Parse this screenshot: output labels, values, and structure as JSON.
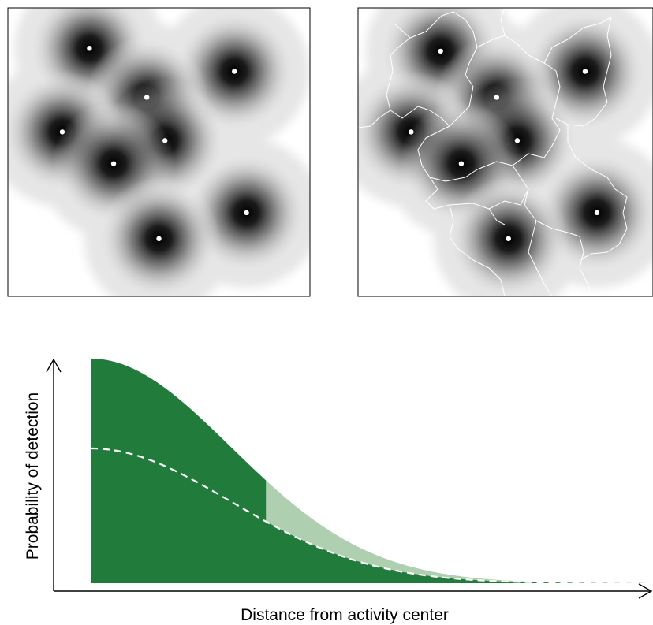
{
  "chart_data": [
    {
      "type": "heatmap",
      "panel": "left",
      "description_kind": "activity-center density surface",
      "colors": {
        "dark": "#000000",
        "light": "#f2f2f2",
        "point": "#ffffff",
        "border": "#000000"
      },
      "points": [
        {
          "x": 0.27,
          "y": 0.86
        },
        {
          "x": 0.75,
          "y": 0.78
        },
        {
          "x": 0.46,
          "y": 0.69
        },
        {
          "x": 0.18,
          "y": 0.57
        },
        {
          "x": 0.52,
          "y": 0.54
        },
        {
          "x": 0.35,
          "y": 0.46
        },
        {
          "x": 0.79,
          "y": 0.29
        },
        {
          "x": 0.5,
          "y": 0.2
        }
      ]
    },
    {
      "type": "heatmap",
      "panel": "right",
      "description_kind": "activity-center density surface with territory boundaries",
      "colors": {
        "dark": "#000000",
        "light": "#f2f2f2",
        "point": "#ffffff",
        "boundary": "#ffffff",
        "border": "#000000"
      },
      "points": [
        {
          "x": 0.28,
          "y": 0.85
        },
        {
          "x": 0.77,
          "y": 0.78
        },
        {
          "x": 0.47,
          "y": 0.69
        },
        {
          "x": 0.18,
          "y": 0.57
        },
        {
          "x": 0.54,
          "y": 0.54
        },
        {
          "x": 0.35,
          "y": 0.46
        },
        {
          "x": 0.81,
          "y": 0.29
        },
        {
          "x": 0.51,
          "y": 0.2
        }
      ]
    },
    {
      "type": "area",
      "panel": "bottom",
      "xlabel": "Distance from activity center",
      "ylabel": "Probability of detection",
      "xlim": [
        0,
        4
      ],
      "ylim": [
        0,
        1
      ],
      "sigma": 1,
      "cutoff_x": 1.25,
      "series": [
        {
          "kind": "full-curve",
          "peak": 1.0,
          "fill": "#217b3b",
          "faded_fill": "#aed0b0"
        },
        {
          "kind": "reduced-curve",
          "peak": 0.6,
          "line_color": "#ffffff",
          "dashed": true
        }
      ]
    }
  ]
}
